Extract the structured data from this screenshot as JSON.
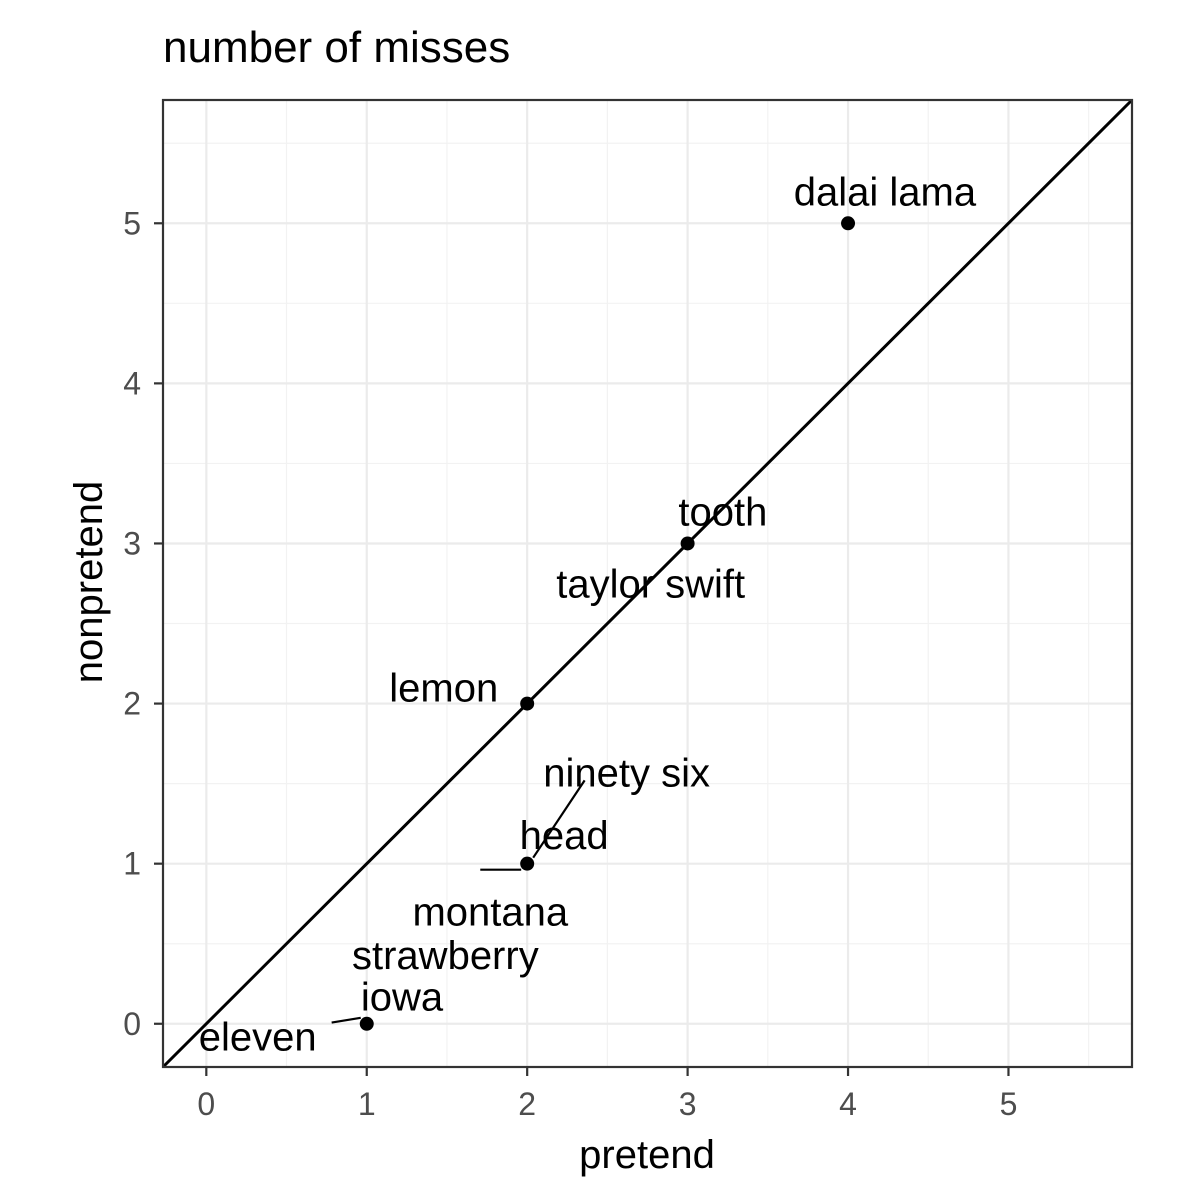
{
  "chart_data": {
    "type": "scatter",
    "title": "number of misses",
    "xlabel": "pretend",
    "ylabel": "nonpretend",
    "xlim": [
      -0.27,
      5.77
    ],
    "ylim": [
      -0.27,
      5.77
    ],
    "x_ticks": [
      0,
      1,
      2,
      3,
      4,
      5
    ],
    "y_ticks": [
      0,
      1,
      2,
      3,
      4,
      5
    ],
    "grid": true,
    "reference_line": {
      "slope": 1,
      "intercept": 0
    },
    "points": [
      {
        "x": 4,
        "y": 5
      },
      {
        "x": 3,
        "y": 3
      },
      {
        "x": 2,
        "y": 2
      },
      {
        "x": 2,
        "y": 1
      },
      {
        "x": 1,
        "y": 0
      }
    ],
    "labels": [
      {
        "text": "dalai lama",
        "point_x": 4,
        "point_y": 5,
        "label_x": 4.23,
        "label_y": 5.2,
        "anchor": "middle",
        "leader": false
      },
      {
        "text": "tooth",
        "point_x": 3,
        "point_y": 3,
        "label_x": 3.22,
        "label_y": 3.2,
        "anchor": "middle",
        "leader": false
      },
      {
        "text": "taylor swift",
        "point_x": 3,
        "point_y": 3,
        "label_x": 2.77,
        "label_y": 2.75,
        "anchor": "middle",
        "leader": false
      },
      {
        "text": "lemon",
        "point_x": 2,
        "point_y": 2,
        "label_x": 1.48,
        "label_y": 2.1,
        "anchor": "middle",
        "leader": false
      },
      {
        "text": "ninety six",
        "point_x": 2,
        "point_y": 1,
        "label_x": 2.62,
        "label_y": 1.57,
        "anchor": "middle",
        "leader": true
      },
      {
        "text": "head",
        "point_x": 2,
        "point_y": 1,
        "label_x": 2.23,
        "label_y": 1.18,
        "anchor": "middle",
        "leader": false
      },
      {
        "text": "montana",
        "point_x": 2,
        "point_y": 1,
        "label_x": 1.77,
        "label_y": 0.7,
        "anchor": "middle",
        "leader": true
      },
      {
        "text": "strawberry",
        "point_x": 1,
        "point_y": 0,
        "label_x": 1.49,
        "label_y": 0.43,
        "anchor": "middle",
        "leader": false
      },
      {
        "text": "iowa",
        "point_x": 1,
        "point_y": 0,
        "label_x": 1.22,
        "label_y": 0.17,
        "anchor": "middle",
        "leader": false
      },
      {
        "text": "eleven",
        "point_x": 1,
        "point_y": 0,
        "label_x": 0.32,
        "label_y": -0.08,
        "anchor": "middle",
        "leader": true
      }
    ]
  }
}
